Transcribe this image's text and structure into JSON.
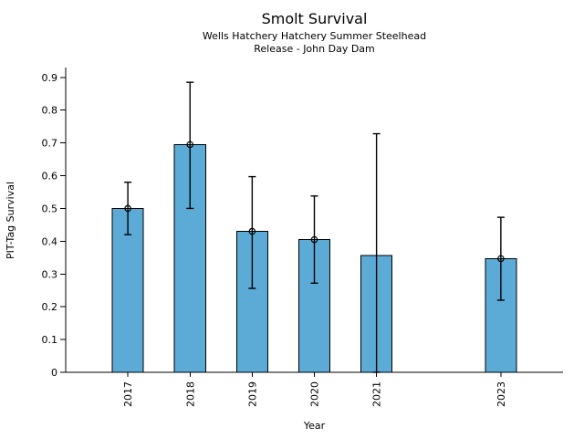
{
  "chart_data": {
    "type": "bar",
    "title": "Smolt Survival",
    "subtitle": [
      "Wells Hatchery Hatchery Summer Steelhead",
      "Release - John Day Dam"
    ],
    "xlabel": "Year",
    "ylabel": "PIT-Tag Survival",
    "categories": [
      "2017",
      "2018",
      "2019",
      "2020",
      "2021",
      "2023"
    ],
    "x": [
      2017,
      2018,
      2019,
      2020,
      2021,
      2023
    ],
    "values": [
      0.5,
      0.695,
      0.43,
      0.405,
      0.357,
      0.347
    ],
    "error_low": [
      0.42,
      0.5,
      0.256,
      0.272,
      0.0,
      0.22
    ],
    "error_high": [
      0.58,
      0.885,
      0.597,
      0.538,
      0.728,
      0.473
    ],
    "markers": [
      true,
      true,
      true,
      true,
      false,
      true
    ],
    "xlim": [
      2016,
      2024
    ],
    "ylim": [
      0,
      0.93
    ],
    "ytick_values": [
      0,
      0.1,
      0.2,
      0.3,
      0.4,
      0.5,
      0.6,
      0.7,
      0.8,
      0.9
    ],
    "ytick_labels": [
      "0",
      "0.1",
      "0.2",
      "0.3",
      "0.4",
      "0.5",
      "0.6",
      "0.7",
      "0.8",
      "0.9"
    ],
    "bar_width": 0.5,
    "grid": false,
    "legend": null,
    "colors": {
      "bar_fill": "#5CAAD6",
      "bar_edge": "#000000",
      "error": "#000000",
      "axis": "#000000",
      "text": "#000000"
    }
  }
}
